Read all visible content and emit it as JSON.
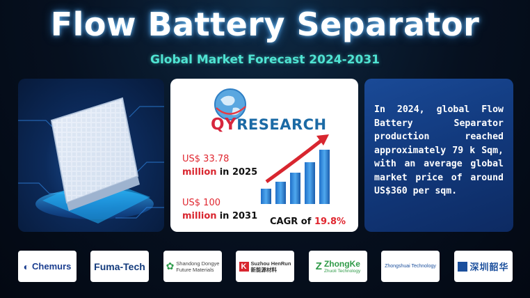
{
  "header": {
    "title": "Flow Battery Separator",
    "subtitle": "Global Market Forecast 2024-2031"
  },
  "center": {
    "logo_prefix": "QY",
    "logo_rest": "RESEARCH",
    "stat1_money": "US$ 33.78",
    "stat1_unit": "million",
    "stat1_in": "in 2025",
    "stat2_money": "US$ 100",
    "stat2_unit": "million",
    "stat2_in": "in 2031",
    "cagr_label": "CAGR of",
    "cagr_value": "19.8%",
    "growth_bars": [
      0.22,
      0.32,
      0.45,
      0.6,
      0.78
    ],
    "colors": {
      "red": "#e0262f",
      "blue": "#1b6aa5"
    }
  },
  "right": {
    "text": "In 2024, global Flow Battery Separator production reached approximately 79 k Sqm, with an average global market price of around US$360 per sqm."
  },
  "companies": [
    {
      "name": "Chemurs"
    },
    {
      "name": "Fuma-Tech"
    },
    {
      "name_line1": "Shandong Dongye",
      "name_line2": "Future Materials"
    },
    {
      "name_line1": "Suzhou HenRun",
      "name_line2": "新能源材料"
    },
    {
      "name": "ZhongKe",
      "name_sub": "Zhuoli Technology"
    },
    {
      "name": "Zhongshuai Technology"
    },
    {
      "name": "深圳韶华"
    }
  ]
}
